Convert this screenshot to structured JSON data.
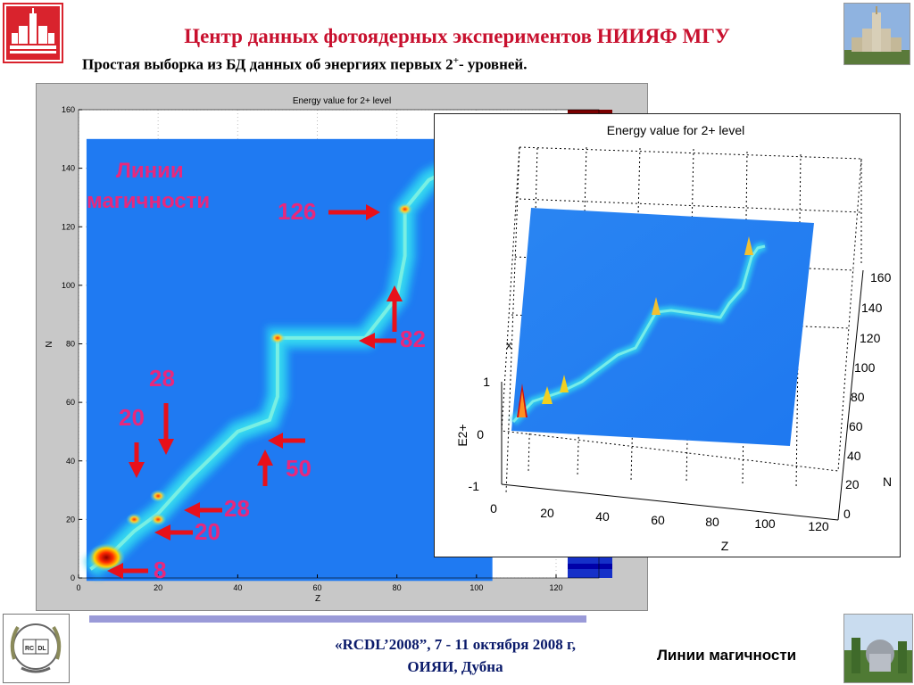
{
  "header": {
    "title": "Центр данных фотоядерных экспериментов НИИЯФ МГУ",
    "subtitle_main": "Простая выборка из БД данных об энергиях первых 2",
    "subtitle_sup": "+",
    "subtitle_tail": "- уровней."
  },
  "footer": {
    "line1": "«RCDL’2008”,  7 - 11 октября 2008 г,",
    "line2": "ОИЯИ, Дубна",
    "right_label": "Линии магичности"
  },
  "logo_rcdl": {
    "left": "RC",
    "right": "DL"
  },
  "overlay": {
    "magic_lines_label_1": "Линии",
    "magic_lines_label_2": "магичности",
    "labels": [
      "126",
      "82",
      "50",
      "28",
      "20",
      "28",
      "20",
      "8"
    ]
  },
  "colors": {
    "title_red": "#c8102e",
    "overlay_pink": "#e8287c",
    "arrow_red": "#e8101a",
    "heatmap_bg": "#1f7af2",
    "footer_blue": "#0a1a6a",
    "footer_bar": "#9a9ad8"
  },
  "chart_data": [
    {
      "type": "heatmap",
      "title": "Energy value for 2+ level",
      "xlabel": "Z",
      "ylabel": "N",
      "xlim": [
        0,
        120
      ],
      "ylim": [
        0,
        160
      ],
      "xticks": [
        "0",
        "20",
        "40",
        "60",
        "80",
        "100",
        "120"
      ],
      "yticks": [
        "0",
        "20",
        "40",
        "60",
        "80",
        "100",
        "120",
        "140",
        "160"
      ],
      "grid": true,
      "peaks": [
        {
          "z": 7,
          "n": 7,
          "level": "high"
        },
        {
          "z": 14,
          "n": 20,
          "level": "medium"
        },
        {
          "z": 20,
          "n": 20,
          "level": "medium"
        },
        {
          "z": 20,
          "n": 28,
          "level": "medium"
        },
        {
          "z": 50,
          "n": 82,
          "level": "medium"
        },
        {
          "z": 82,
          "n": 126,
          "level": "medium"
        }
      ]
    },
    {
      "type": "surface",
      "title": "Energy value for 2+ level",
      "xlabel": "Z",
      "ylabel": "N",
      "zlabel": "E2+",
      "xticks": [
        "0",
        "20",
        "40",
        "60",
        "80",
        "100",
        "120"
      ],
      "yticks": [
        "0",
        "20",
        "40",
        "60",
        "80",
        "100",
        "120",
        "140",
        "160"
      ],
      "zticks": [
        "-1",
        "0",
        "1"
      ],
      "zlabel_partial": "x"
    }
  ]
}
